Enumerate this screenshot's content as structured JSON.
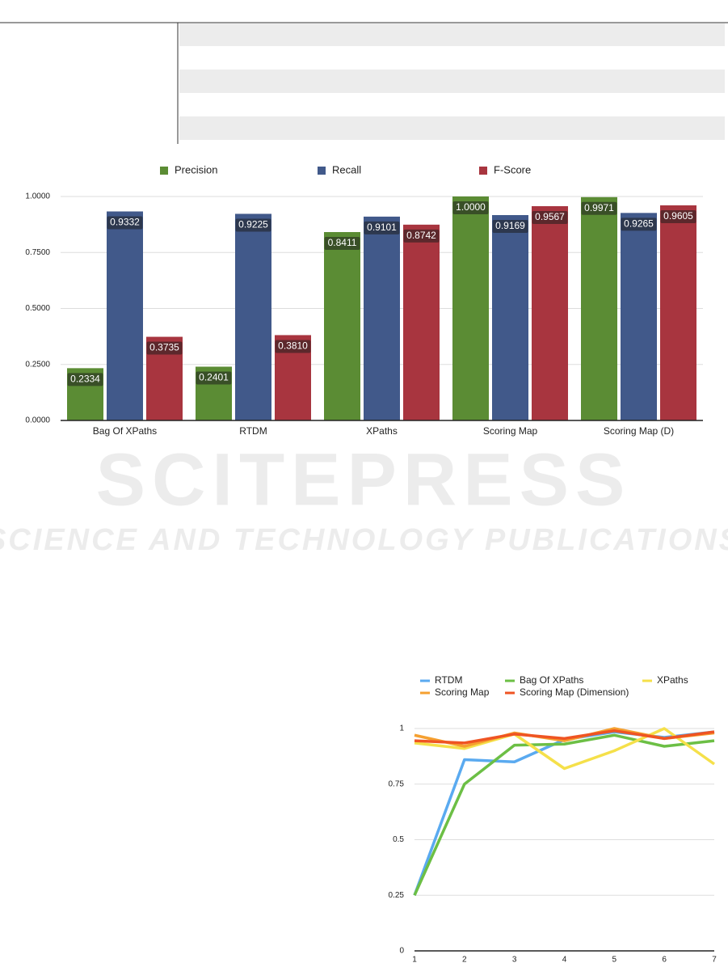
{
  "watermark": {
    "title": "SCITEPRESS",
    "subtitle": "SCIENCE AND TECHNOLOGY PUBLICATIONS"
  },
  "chart_data": [
    {
      "type": "bar",
      "categories": [
        "Bag Of XPaths",
        "RTDM",
        "XPaths",
        "Scoring Map",
        "Scoring Map (D)"
      ],
      "series": [
        {
          "name": "Precision",
          "color": "#5b8c34",
          "values": [
            0.2334,
            0.2401,
            0.8411,
            1.0,
            0.9971
          ],
          "value_labels": [
            "0.2334",
            "0.2401",
            "0.8411",
            "1.0000",
            "0.9971"
          ]
        },
        {
          "name": "Recall",
          "color": "#41598a",
          "values": [
            0.9332,
            0.9225,
            0.9101,
            0.9169,
            0.9265
          ]
        },
        {
          "name": "F-Score",
          "color": "#a8353f",
          "values": [
            0.3735,
            0.381,
            0.8742,
            0.9567,
            0.9605
          ],
          "value_labels": [
            "0.3735",
            "0.3810",
            "0.8742",
            "0.9567",
            "0.9605"
          ]
        }
      ],
      "ylim": [
        0,
        1
      ],
      "yticks": [
        {
          "value": 0,
          "label": "0.0000"
        },
        {
          "value": 0.25,
          "label": "0.2500"
        },
        {
          "value": 0.5,
          "label": "0.5000"
        },
        {
          "value": 0.75,
          "label": "0.7500"
        },
        {
          "value": 1,
          "label": "1.0000"
        }
      ],
      "grid": true,
      "legend": "top"
    },
    {
      "type": "line",
      "x": [
        1,
        2,
        3,
        4,
        5,
        6,
        7
      ],
      "series": [
        {
          "name": "RTDM",
          "color": "#5aaaf0",
          "values": [
            0.25,
            0.86,
            0.85,
            0.95,
            0.985,
            0.96,
            0.985
          ]
        },
        {
          "name": "Bag Of XPaths",
          "color": "#6cbf45",
          "values": [
            0.25,
            0.75,
            0.925,
            0.93,
            0.97,
            0.92,
            0.945
          ]
        },
        {
          "name": "XPaths",
          "color": "#f5e04a",
          "values": [
            0.935,
            0.91,
            0.975,
            0.82,
            0.9,
            1.0,
            0.84
          ]
        },
        {
          "name": "Scoring Map",
          "color": "#f5a030",
          "values": [
            0.97,
            0.92,
            0.98,
            0.945,
            1.0,
            0.955,
            0.98
          ]
        },
        {
          "name": "Scoring Map (Dimension)",
          "color": "#ef5423",
          "values": [
            0.945,
            0.935,
            0.975,
            0.955,
            0.99,
            0.955,
            0.985
          ]
        }
      ],
      "xlim": [
        1,
        7
      ],
      "xticks": [
        1,
        2,
        3,
        4,
        5,
        6,
        7
      ],
      "ylim": [
        0,
        1
      ],
      "yticks": [
        0,
        0.25,
        0.5,
        0.75,
        1
      ],
      "grid": true,
      "legend": "top"
    }
  ]
}
